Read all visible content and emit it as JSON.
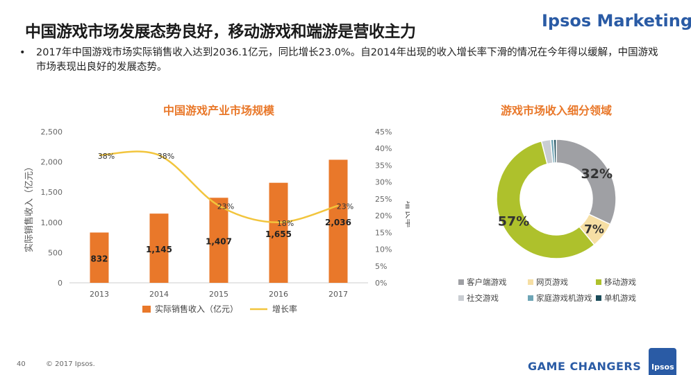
{
  "header": {
    "title": "中国游戏市场发展态势良好，移动游戏和端游是营收主力",
    "brand": "Ipsos Marketing"
  },
  "bullet": {
    "marker": "•",
    "text": "2017年中国游戏市场实际销售收入达到2036.1亿元，同比增长23.0%。自2014年出现的收入增长率下滑的情况在今年得以缓解，中国游戏市场表现出良好的发展态势。"
  },
  "footer": {
    "page_number": "40",
    "copyright": "© 2017 Ipsos.",
    "tagline": "GAME CHANGERS",
    "logo_text": "Ipsos"
  },
  "chart_data": [
    {
      "type": "bar",
      "title": "中国游戏产业市场规模",
      "categories": [
        "2013",
        "2014",
        "2015",
        "2016",
        "2017"
      ],
      "series": [
        {
          "name": "实际销售收入（亿元）",
          "type": "bar",
          "axis": "left",
          "values": [
            832,
            1145,
            1407,
            1655,
            2036
          ],
          "labels": [
            "832",
            "1,145",
            "1,407",
            "1,655",
            "2,036"
          ],
          "color": "#e9782a"
        },
        {
          "name": "增长率",
          "type": "line",
          "axis": "right",
          "values": [
            38,
            38,
            23,
            18,
            23
          ],
          "labels": [
            "38%",
            "38%",
            "23%",
            "18%",
            "23%"
          ],
          "color": "#f2c53d"
        }
      ],
      "ylabel": "实际销售收入（亿元）",
      "y2label": "增长率",
      "ylim": [
        0,
        2500
      ],
      "yticks": [
        "0",
        "500",
        "1,000",
        "1,500",
        "2,000",
        "2,500"
      ],
      "y2lim": [
        0,
        45
      ],
      "y2ticks": [
        "0%",
        "5%",
        "10%",
        "15%",
        "20%",
        "25%",
        "30%",
        "35%",
        "40%",
        "45%"
      ],
      "grid": false,
      "legend_position": "bottom"
    },
    {
      "type": "pie",
      "subtype": "donut",
      "title": "游戏市场收入细分领域",
      "slices": [
        {
          "name": "客户端游戏",
          "value": 32,
          "label": "32%",
          "color": "#9fa0a4"
        },
        {
          "name": "网页游戏",
          "value": 7,
          "label": "7%",
          "color": "#f6dfa4"
        },
        {
          "name": "移动游戏",
          "value": 57,
          "label": "57%",
          "color": "#aec12c"
        },
        {
          "name": "社交游戏",
          "value": 2.5,
          "label": "",
          "color": "#c9cdd2"
        },
        {
          "name": "家庭游戏机游戏",
          "value": 0.8,
          "label": "",
          "color": "#6ea5b6"
        },
        {
          "name": "单机游戏",
          "value": 0.7,
          "label": "",
          "color": "#1b4c5a"
        }
      ],
      "legend_position": "bottom"
    }
  ]
}
